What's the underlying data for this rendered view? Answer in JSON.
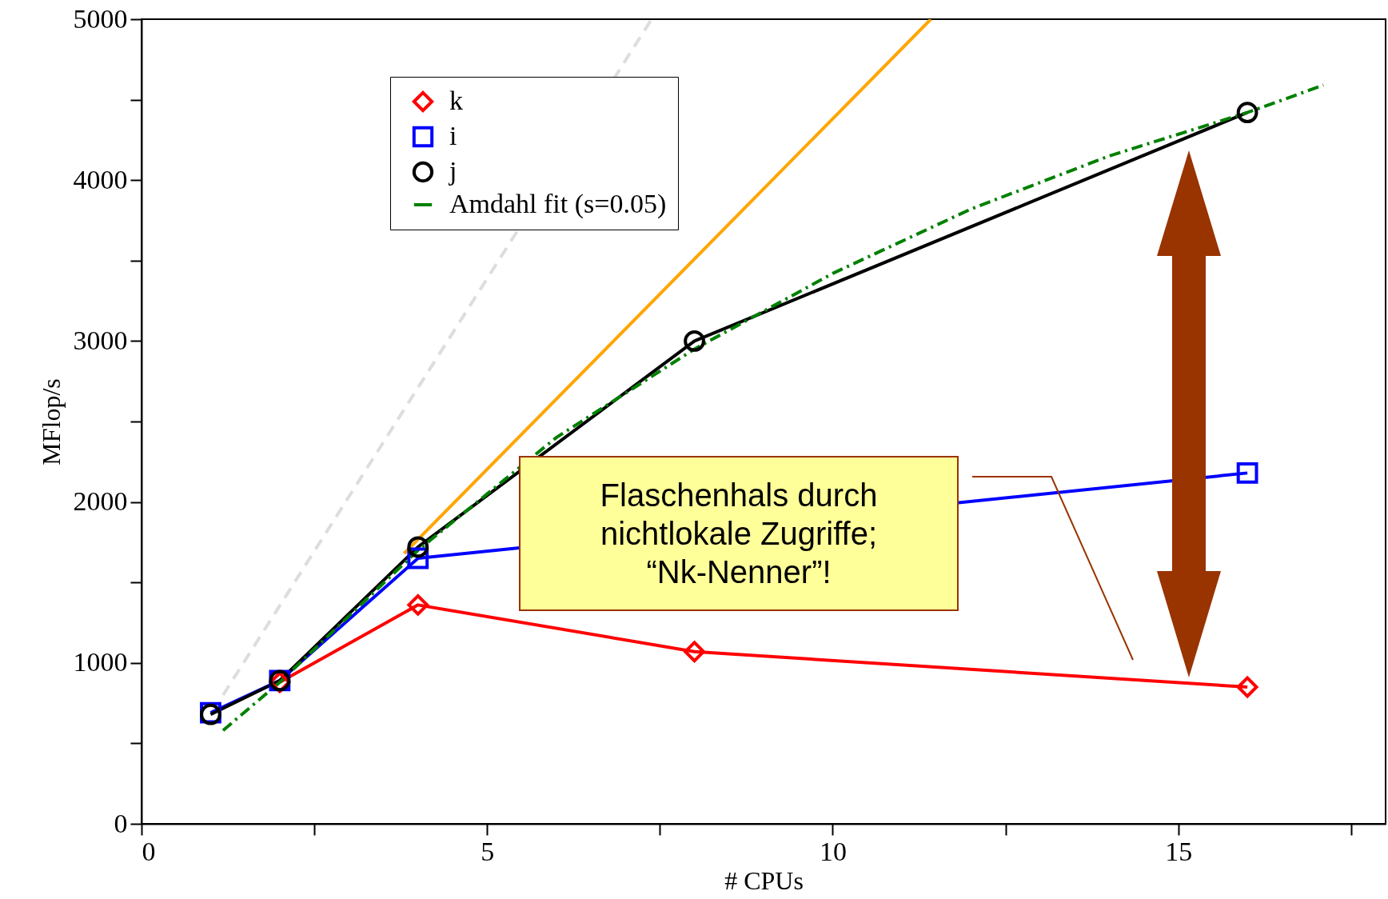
{
  "chart_data": {
    "type": "line",
    "xlabel": "# CPUs",
    "ylabel": "MFlop/s",
    "xlim": [
      0,
      18
    ],
    "xticks": [
      0,
      {
        "value": 2.5,
        "label": null
      },
      5,
      {
        "value": 7.5,
        "label": null
      },
      10,
      {
        "value": 12.5,
        "label": null
      },
      15,
      {
        "value": 17.5,
        "label": null
      }
    ],
    "ylim": [
      0,
      5000
    ],
    "yticks": [
      0,
      {
        "value": 500,
        "label": null
      },
      1000,
      {
        "value": 1500,
        "label": null
      },
      2000,
      {
        "value": 2500,
        "label": null
      },
      3000,
      {
        "value": 3500,
        "label": null
      },
      4000,
      {
        "value": 4500,
        "label": null
      },
      5000
    ],
    "grid": false,
    "legend": "top left",
    "x": [
      1,
      2,
      4,
      8,
      16
    ],
    "series": [
      {
        "name": "k",
        "color": "#ff0000",
        "marker": "diamond",
        "line_style": "solid",
        "values": [
          null,
          880,
          1360,
          1070,
          850
        ]
      },
      {
        "name": "i",
        "color": "#0000ff",
        "marker": "square",
        "line_style": "solid",
        "values": [
          690,
          890,
          1650,
          null,
          2180
        ]
      },
      {
        "name": "j",
        "color": "#000000",
        "marker": "circle",
        "line_style": "solid",
        "values": [
          680,
          890,
          1720,
          3000,
          4420
        ]
      },
      {
        "name": "Amdahl fit (s=0.05)",
        "color": "#008000",
        "marker": "none",
        "line_style": "dashed",
        "x": [
          1.18,
          2,
          4,
          6,
          8,
          10,
          12,
          14,
          16,
          17.1
        ],
        "values": [
          580,
          880,
          1700,
          2400,
          2950,
          3420,
          3820,
          4150,
          4420,
          4590
        ]
      },
      {
        "color": "#ffa500",
        "marker": "none",
        "line_style": "solid",
        "x": [
          3.8,
          11.42
        ],
        "values": [
          1680,
          5000
        ]
      },
      {
        "color": "#dddddd",
        "marker": "none",
        "line_style": "dashed",
        "x": [
          1.18,
          7.38
        ],
        "values": [
          800,
          5000
        ]
      }
    ],
    "annotations": [
      "Flaschenhals durch nichtlokale Zugriffe; “Nk-Nenner”!"
    ]
  }
}
